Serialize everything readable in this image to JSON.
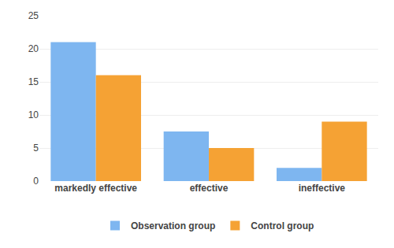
{
  "chart_data": {
    "type": "bar",
    "categories": [
      "markedly effective",
      "effective",
      "ineffective"
    ],
    "series": [
      {
        "name": "Observation group",
        "color": "#7EB6F0",
        "values": [
          21,
          7.5,
          2
        ]
      },
      {
        "name": "Control group",
        "color": "#F5A234",
        "values": [
          16,
          5,
          9
        ]
      }
    ],
    "ylim": [
      0,
      25
    ],
    "yticks": [
      0,
      5,
      10,
      15,
      20,
      25
    ],
    "grid": true,
    "legend": "bottom"
  }
}
